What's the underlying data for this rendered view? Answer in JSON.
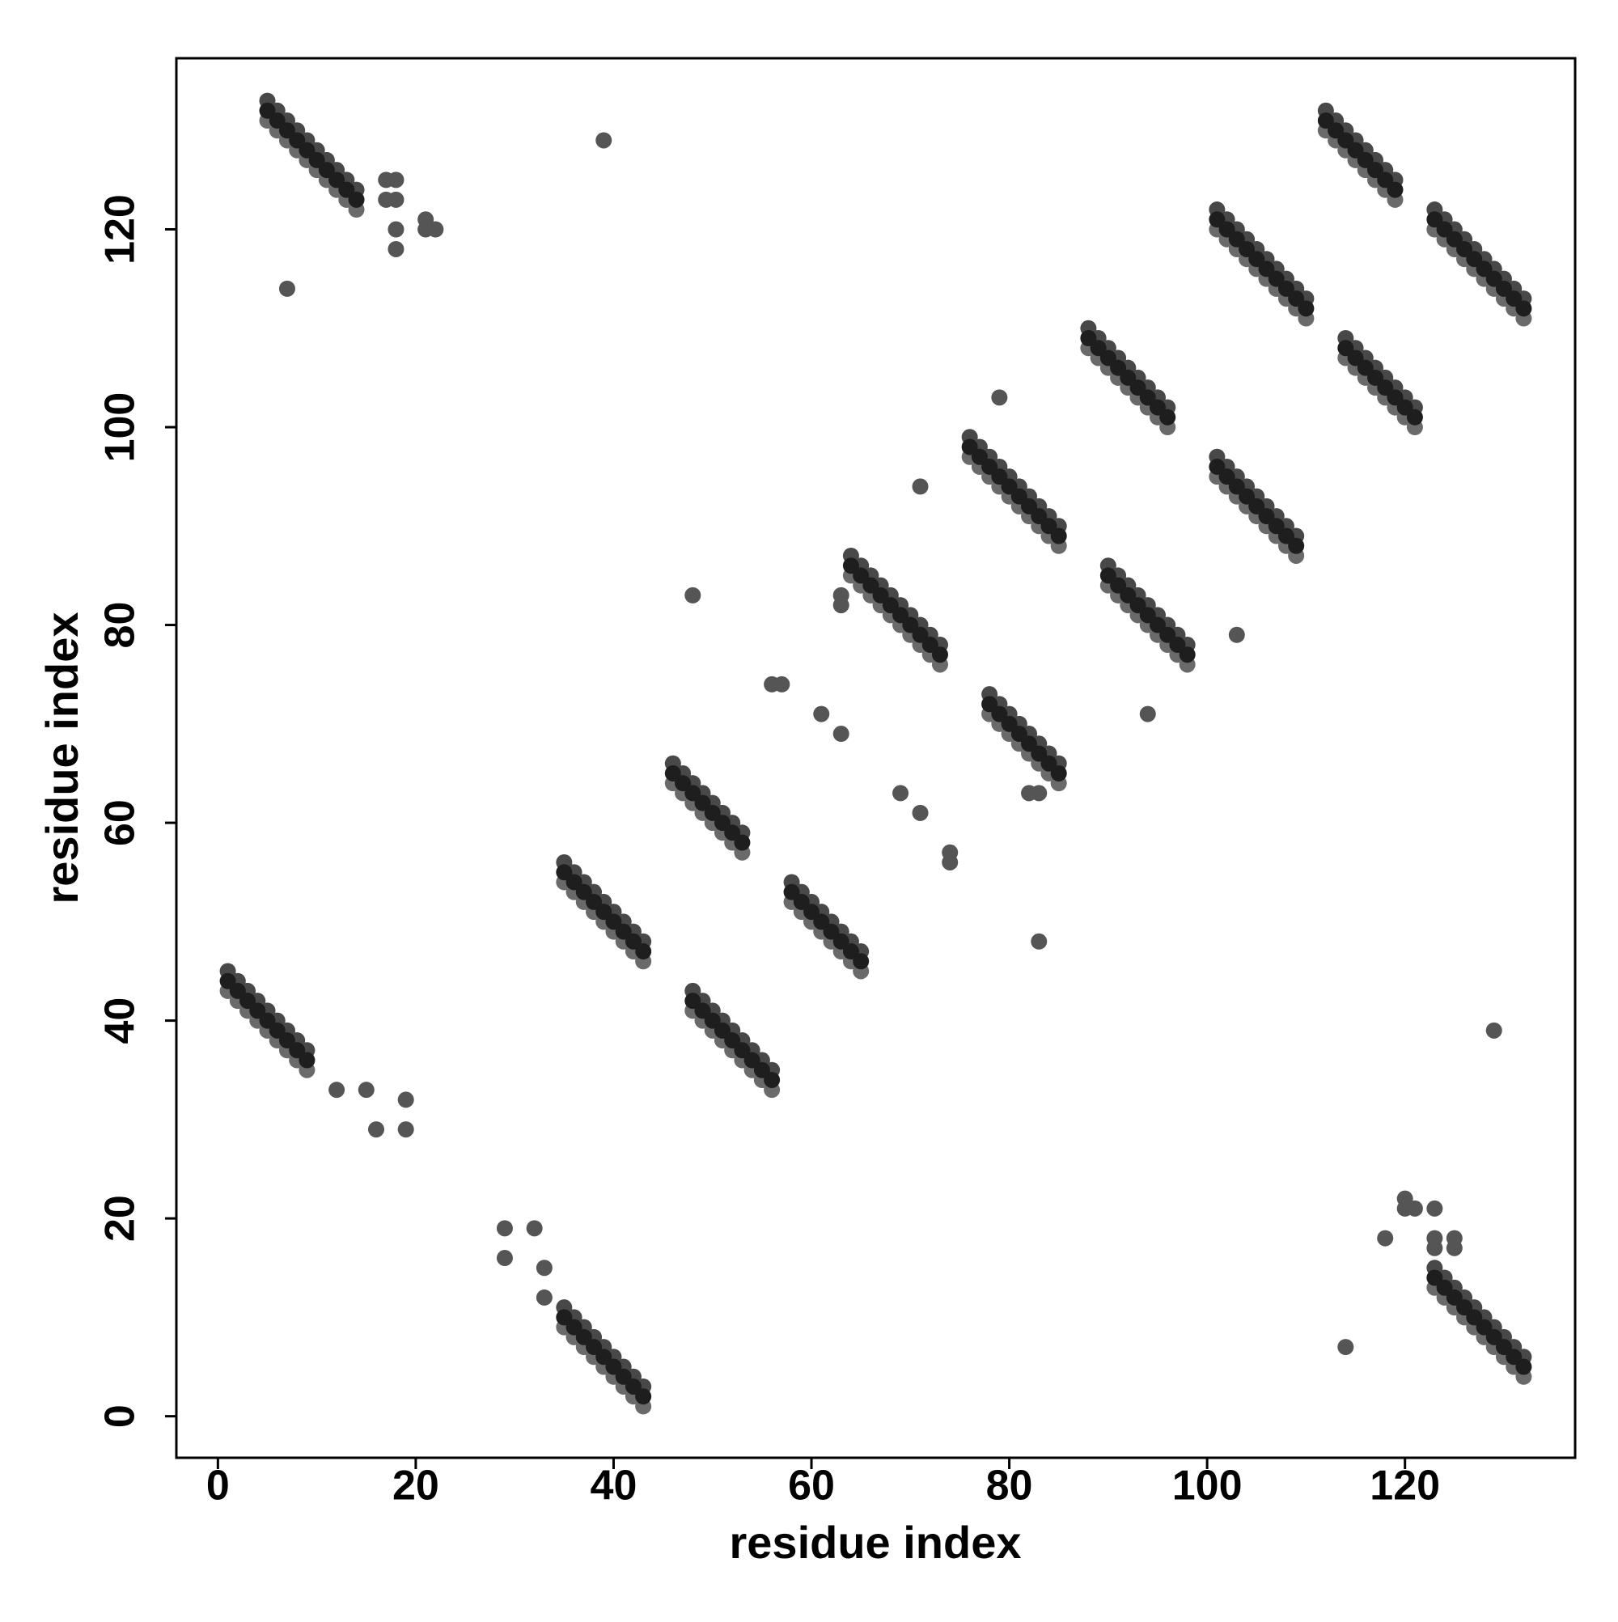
{
  "chart_data": {
    "type": "scatter",
    "x_label": "residue index",
    "y_label": "residue index",
    "xlim": [
      -4.2,
      137.2
    ],
    "ylim": [
      -4.2,
      137.3
    ],
    "xticks": [
      0,
      20,
      40,
      60,
      80,
      100,
      120
    ],
    "yticks": [
      0,
      20,
      40,
      60,
      80,
      100,
      120
    ],
    "grid": false,
    "series": [
      {
        "color": "#6a6a6a",
        "x": [
          5,
          6,
          7,
          8,
          9,
          10,
          11,
          12,
          13,
          14,
          1,
          2,
          3,
          4,
          5,
          6,
          7,
          8,
          9,
          35,
          36,
          37,
          38,
          39,
          40,
          41,
          42,
          43,
          35,
          36,
          37,
          38,
          39,
          40,
          41,
          42,
          43,
          46,
          47,
          48,
          49,
          50,
          51,
          52,
          53,
          48,
          49,
          50,
          51,
          52,
          53,
          54,
          55,
          56,
          58,
          59,
          60,
          61,
          62,
          63,
          64,
          65,
          64,
          65,
          66,
          67,
          68,
          69,
          70,
          71,
          72,
          73,
          78,
          79,
          80,
          81,
          82,
          83,
          84,
          85,
          76,
          77,
          78,
          79,
          80,
          81,
          82,
          83,
          84,
          85,
          88,
          89,
          90,
          91,
          92,
          93,
          94,
          95,
          96,
          90,
          91,
          92,
          93,
          94,
          95,
          96,
          97,
          98,
          101,
          102,
          103,
          104,
          105,
          106,
          107,
          108,
          109,
          101,
          102,
          103,
          104,
          105,
          106,
          107,
          108,
          109,
          110,
          112,
          113,
          114,
          115,
          116,
          117,
          118,
          119,
          114,
          115,
          116,
          117,
          118,
          119,
          120,
          121,
          123,
          124,
          125,
          126,
          127,
          128,
          129,
          130,
          131,
          132,
          123,
          124,
          125,
          126,
          127,
          128,
          129,
          130,
          131,
          132
        ],
        "y": [
          131,
          130,
          129,
          128,
          127,
          126,
          125,
          124,
          123,
          122,
          43,
          42,
          41,
          40,
          39,
          38,
          37,
          36,
          35,
          9,
          8,
          7,
          6,
          5,
          4,
          3,
          2,
          1,
          54,
          53,
          52,
          51,
          50,
          49,
          48,
          47,
          46,
          64,
          63,
          62,
          61,
          60,
          59,
          58,
          57,
          41,
          40,
          39,
          38,
          37,
          36,
          35,
          34,
          33,
          52,
          51,
          50,
          49,
          48,
          47,
          46,
          45,
          85,
          84,
          83,
          82,
          81,
          80,
          79,
          78,
          77,
          76,
          71,
          70,
          69,
          68,
          67,
          66,
          65,
          64,
          97,
          96,
          95,
          94,
          93,
          92,
          91,
          90,
          89,
          88,
          108,
          107,
          106,
          105,
          104,
          103,
          102,
          101,
          100,
          84,
          83,
          82,
          81,
          80,
          79,
          78,
          77,
          76,
          95,
          94,
          93,
          92,
          91,
          90,
          89,
          88,
          87,
          120,
          119,
          118,
          117,
          116,
          115,
          114,
          113,
          112,
          111,
          130,
          129,
          128,
          127,
          126,
          125,
          124,
          123,
          107,
          106,
          105,
          104,
          103,
          102,
          101,
          100,
          120,
          119,
          118,
          117,
          116,
          115,
          114,
          113,
          112,
          111,
          13,
          12,
          11,
          10,
          9,
          8,
          7,
          6,
          5,
          4
        ]
      },
      {
        "color": "#484848",
        "x": [
          5,
          6,
          7,
          8,
          9,
          10,
          11,
          12,
          13,
          14,
          1,
          2,
          3,
          4,
          5,
          6,
          7,
          8,
          9,
          35,
          36,
          37,
          38,
          39,
          40,
          41,
          42,
          43,
          35,
          36,
          37,
          38,
          39,
          40,
          41,
          42,
          43,
          46,
          47,
          48,
          49,
          50,
          51,
          52,
          53,
          48,
          49,
          50,
          51,
          52,
          53,
          54,
          55,
          56,
          58,
          59,
          60,
          61,
          62,
          63,
          64,
          65,
          64,
          65,
          66,
          67,
          68,
          69,
          70,
          71,
          72,
          73,
          78,
          79,
          80,
          81,
          82,
          83,
          84,
          85,
          76,
          77,
          78,
          79,
          80,
          81,
          82,
          83,
          84,
          85,
          88,
          89,
          90,
          91,
          92,
          93,
          94,
          95,
          96,
          90,
          91,
          92,
          93,
          94,
          95,
          96,
          97,
          98,
          101,
          102,
          103,
          104,
          105,
          106,
          107,
          108,
          109,
          101,
          102,
          103,
          104,
          105,
          106,
          107,
          108,
          109,
          110,
          112,
          113,
          114,
          115,
          116,
          117,
          118,
          119,
          114,
          115,
          116,
          117,
          118,
          119,
          120,
          121,
          123,
          124,
          125,
          126,
          127,
          128,
          129,
          130,
          131,
          132,
          123,
          124,
          125,
          126,
          127,
          128,
          129,
          130,
          131,
          132
        ],
        "y": [
          133,
          132,
          131,
          130,
          129,
          128,
          127,
          126,
          125,
          124,
          45,
          44,
          43,
          42,
          41,
          40,
          39,
          38,
          37,
          11,
          10,
          9,
          8,
          7,
          6,
          5,
          4,
          3,
          56,
          55,
          54,
          53,
          52,
          51,
          50,
          49,
          48,
          66,
          65,
          64,
          63,
          62,
          61,
          60,
          59,
          43,
          42,
          41,
          40,
          39,
          38,
          37,
          36,
          35,
          54,
          53,
          52,
          51,
          50,
          49,
          48,
          47,
          87,
          86,
          85,
          84,
          83,
          82,
          81,
          80,
          79,
          78,
          73,
          72,
          71,
          70,
          69,
          68,
          67,
          66,
          99,
          98,
          97,
          96,
          95,
          94,
          93,
          92,
          91,
          90,
          110,
          109,
          108,
          107,
          106,
          105,
          104,
          103,
          102,
          86,
          85,
          84,
          83,
          82,
          81,
          80,
          79,
          78,
          97,
          96,
          95,
          94,
          93,
          92,
          91,
          90,
          89,
          122,
          121,
          120,
          119,
          118,
          117,
          116,
          115,
          114,
          113,
          132,
          131,
          130,
          129,
          128,
          127,
          126,
          125,
          109,
          108,
          107,
          106,
          105,
          104,
          103,
          102,
          122,
          121,
          120,
          119,
          118,
          117,
          116,
          115,
          114,
          113,
          15,
          14,
          13,
          12,
          11,
          10,
          9,
          8,
          7,
          6
        ]
      },
      {
        "color": "#1e1e1e",
        "x": [
          5,
          6,
          7,
          8,
          9,
          10,
          11,
          12,
          13,
          14,
          1,
          2,
          3,
          4,
          5,
          6,
          7,
          8,
          9,
          35,
          36,
          37,
          38,
          39,
          40,
          41,
          42,
          43,
          35,
          36,
          37,
          38,
          39,
          40,
          41,
          42,
          43,
          46,
          47,
          48,
          49,
          50,
          51,
          52,
          53,
          48,
          49,
          50,
          51,
          52,
          53,
          54,
          55,
          56,
          58,
          59,
          60,
          61,
          62,
          63,
          64,
          65,
          64,
          65,
          66,
          67,
          68,
          69,
          70,
          71,
          72,
          73,
          78,
          79,
          80,
          81,
          82,
          83,
          84,
          85,
          76,
          77,
          78,
          79,
          80,
          81,
          82,
          83,
          84,
          85,
          88,
          89,
          90,
          91,
          92,
          93,
          94,
          95,
          96,
          90,
          91,
          92,
          93,
          94,
          95,
          96,
          97,
          98,
          101,
          102,
          103,
          104,
          105,
          106,
          107,
          108,
          109,
          101,
          102,
          103,
          104,
          105,
          106,
          107,
          108,
          109,
          110,
          112,
          113,
          114,
          115,
          116,
          117,
          118,
          119,
          114,
          115,
          116,
          117,
          118,
          119,
          120,
          121,
          123,
          124,
          125,
          126,
          127,
          128,
          129,
          130,
          131,
          132,
          123,
          124,
          125,
          126,
          127,
          128,
          129,
          130,
          131,
          132
        ],
        "y": [
          132,
          131,
          130,
          129,
          128,
          127,
          126,
          125,
          124,
          123,
          44,
          43,
          42,
          41,
          40,
          39,
          38,
          37,
          36,
          10,
          9,
          8,
          7,
          6,
          5,
          4,
          3,
          2,
          55,
          54,
          53,
          52,
          51,
          50,
          49,
          48,
          47,
          65,
          64,
          63,
          62,
          61,
          60,
          59,
          58,
          42,
          41,
          40,
          39,
          38,
          37,
          36,
          35,
          34,
          53,
          52,
          51,
          50,
          49,
          48,
          47,
          46,
          86,
          85,
          84,
          83,
          82,
          81,
          80,
          79,
          78,
          77,
          72,
          71,
          70,
          69,
          68,
          67,
          66,
          65,
          98,
          97,
          96,
          95,
          94,
          93,
          92,
          91,
          90,
          89,
          109,
          108,
          107,
          106,
          105,
          104,
          103,
          102,
          101,
          85,
          84,
          83,
          82,
          81,
          80,
          79,
          78,
          77,
          96,
          95,
          94,
          93,
          92,
          91,
          90,
          89,
          88,
          121,
          120,
          119,
          118,
          117,
          116,
          115,
          114,
          113,
          112,
          131,
          130,
          129,
          128,
          127,
          126,
          125,
          124,
          108,
          107,
          106,
          105,
          104,
          103,
          102,
          101,
          121,
          120,
          119,
          118,
          117,
          116,
          115,
          114,
          113,
          112,
          14,
          13,
          12,
          11,
          10,
          9,
          8,
          7,
          6,
          5
        ]
      },
      {
        "color": "#555555",
        "x": [
          17,
          18,
          17,
          18,
          18,
          18,
          21,
          21,
          22,
          7,
          39,
          12,
          15,
          16,
          19,
          19,
          29,
          29,
          32,
          33,
          33,
          120,
          120,
          121,
          123,
          123,
          123,
          118,
          125,
          125,
          114,
          129,
          48,
          56,
          57,
          61,
          63,
          69,
          71,
          74,
          74,
          83,
          71,
          79,
          103,
          94,
          63,
          63,
          82,
          83
        ],
        "y": [
          125,
          125,
          123,
          123,
          120,
          118,
          121,
          120,
          120,
          114,
          129,
          33,
          33,
          29,
          32,
          29,
          19,
          16,
          19,
          15,
          12,
          22,
          21,
          21,
          21,
          18,
          17,
          18,
          18,
          17,
          7,
          39,
          83,
          74,
          74,
          71,
          69,
          63,
          61,
          57,
          56,
          48,
          94,
          103,
          79,
          71,
          83,
          82,
          63,
          63
        ]
      }
    ]
  }
}
